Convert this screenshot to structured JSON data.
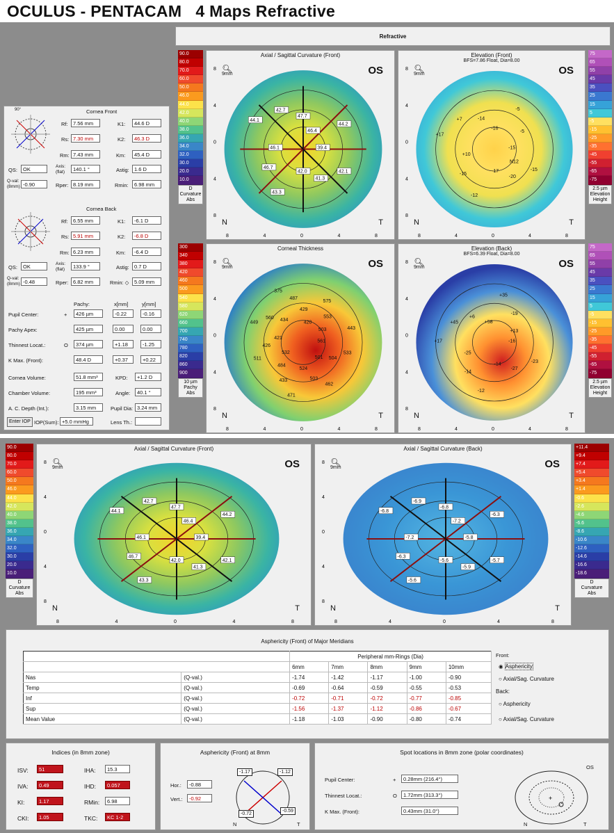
{
  "title": "OCULUS - PENTACAM   4 Maps Refractive",
  "refractive": "Refractive",
  "maps": {
    "axial": {
      "title": "Axial / Sagittal Curvature (Front)"
    },
    "elev_front": {
      "title": "Elevation (Front)",
      "sub": "BFS=7.86 Float, Dia=8.00"
    },
    "thickness": {
      "title": "Corneal Thickness"
    },
    "elev_back": {
      "title": "Elevation (Back)",
      "sub": "BFS=6.39 Float, Dia=8.00"
    },
    "axial_back": {
      "title": "Axial / Sagittal Curvature (Back)"
    },
    "os": "OS",
    "mag": "9mm",
    "n": "N",
    "t": "T",
    "xticks": [
      "8",
      "4",
      "0",
      "4",
      "8"
    ],
    "yticks": [
      "8",
      "4",
      "0",
      "4",
      "8"
    ]
  },
  "scales": {
    "curv": {
      "values": [
        "90.0",
        "80.0",
        "70.0",
        "60.0",
        "50.0",
        "46.0",
        "44.0",
        "42.0",
        "40.0",
        "38.0",
        "36.0",
        "34.0",
        "32.0",
        "30.0",
        "20.0",
        "10.0"
      ],
      "foot": [
        "D",
        "Curvature",
        "Abs"
      ]
    },
    "elev": {
      "values": [
        "75",
        "65",
        "55",
        "45",
        "35",
        "25",
        "15",
        "5",
        "-5",
        "-15",
        "-25",
        "-35",
        "-45",
        "-55",
        "-65",
        "-75"
      ],
      "foot": [
        "2.5 µm",
        "Elevation",
        "Height"
      ]
    },
    "pachy": {
      "values": [
        "300",
        "340",
        "380",
        "420",
        "460",
        "500",
        "540",
        "580",
        "620",
        "660",
        "700",
        "740",
        "780",
        "820",
        "860",
        "900"
      ],
      "foot": [
        "10 µm",
        "Pachy",
        "Abs"
      ]
    },
    "back": {
      "values": [
        "+11.4",
        "+9.4",
        "+7.4",
        "+5.4",
        "+3.4",
        "+1.4",
        "-0.6",
        "-2.6",
        "-4.6",
        "-6.6",
        "-8.6",
        "-10.6",
        "-12.6",
        "-14.6",
        "-16.6",
        "-18.6"
      ],
      "foot": [
        "D",
        "Curvature",
        "Abs"
      ]
    },
    "colors": [
      "#9b0000",
      "#c00000",
      "#e21a1a",
      "#f04a2c",
      "#f5781e",
      "#fb9a1e",
      "#fce24a",
      "#d6e65c",
      "#8ed676",
      "#52c28c",
      "#36a6b2",
      "#3a86c8",
      "#2e60c0",
      "#2a3ea6",
      "#3a2a8e",
      "#4a1e78"
    ],
    "elev_colors": [
      "#c468c8",
      "#b050b8",
      "#9040a8",
      "#6a3aa8",
      "#4a50c0",
      "#3a78d0",
      "#36a2d8",
      "#40c8d8",
      "#ffe060",
      "#ffc030",
      "#ff9a28",
      "#ff7030",
      "#f04030",
      "#d02030",
      "#b01040",
      "#900030"
    ]
  },
  "front": {
    "title": "Cornea Front",
    "rf_l": "Rf:",
    "rf": "7.56 mm",
    "k1_l": "K1:",
    "k1": "44.6 D",
    "rs_l": "Rs:",
    "rs": "7.30 mm",
    "k2_l": "K2:",
    "k2": "46.3 D",
    "rm_l": "Rm:",
    "rm": "7.43 mm",
    "km_l": "Km:",
    "km": "45.4 D",
    "qs_l": "QS:",
    "qs": "OK",
    "axis_l": "Axis: (flat)",
    "axis": "140.1 °",
    "astig_l": "Astig:",
    "astig": "1.6 D",
    "qval_l": "Q-val: (8mm)",
    "qval": "-0.90",
    "rper_l": "Rper:",
    "rper": "8.19 mm",
    "rmin_l": "Rmin:",
    "rmin": "6.98 mm"
  },
  "back": {
    "title": "Cornea Back",
    "rf_l": "Rf:",
    "rf": "6.55 mm",
    "k1_l": "K1:",
    "k1": "-6.1 D",
    "rs_l": "Rs:",
    "rs": "5.91 mm",
    "k2_l": "K2:",
    "k2": "-6.8 D",
    "rm_l": "Rm:",
    "rm": "6.23 mm",
    "km_l": "Km:",
    "km": "-6.4 D",
    "qs_l": "QS:",
    "qs": "OK",
    "axis_l": "Axis: (flat)",
    "axis": "133.9 °",
    "astig_l": "Astig:",
    "astig": "0.7 D",
    "qval_l": "Q-val: (8mm)",
    "qval": "-0.48",
    "rper_l": "Rper:",
    "rper": "6.82 mm",
    "rmin_l": "Rmin: ◇",
    "rmin": "5.09 mm"
  },
  "pachy": {
    "h_pachy": "Pachy:",
    "h_x": "x[mm]",
    "h_y": "y[mm]",
    "rows": [
      {
        "label": "Pupil Center:",
        "sym": "+",
        "v": "426 µm",
        "x": "-0.22",
        "y": "-0.16"
      },
      {
        "label": "Pachy Apex:",
        "sym": "",
        "v": "425 µm",
        "x": "0.00",
        "y": "0.00"
      },
      {
        "label": "Thinnest Locat.:",
        "sym": "O",
        "v": "374 µm",
        "x": "+1.18",
        "y": "-1.25"
      },
      {
        "label": "K Max. (Front):",
        "sym": "",
        "v": "48.4 D",
        "x": "+0.37",
        "y": "+0.22"
      }
    ]
  },
  "vol": {
    "cv_l": "Cornea Volume:",
    "cv": "51.8 mm³",
    "kpd_l": "KPD:",
    "kpd": "+1.2 D",
    "chv_l": "Chamber Volume:",
    "chv": "195 mm³",
    "ang_l": "Angle:",
    "ang": "40.1 °",
    "acd_l": "A. C. Depth (Int.):",
    "acd": "3.15 mm",
    "pd_l": "Pupil Dia:",
    "pd": "3.24 mm",
    "iop_btn": "Enter IOP",
    "iop_l": "IOP(Sum):",
    "iop": "+5.0 mmHg",
    "lens_l": "Lens Th.:",
    "lens": ""
  },
  "front_vals": [
    "39.4",
    "42.1",
    "41.3",
    "42.0",
    "43.3",
    "46.7",
    "46.1",
    "44.1",
    "42.7",
    "47.7",
    "46.4",
    "44.2"
  ],
  "elev_front_vals": [
    "-15",
    "-15",
    "-20",
    "-17",
    "-12",
    "-15",
    "+10",
    "+17",
    "+7",
    "-14",
    "-16",
    "-5",
    "-5"
  ],
  "elev_front_mark": "N12",
  "thick_vals": [
    "561",
    "533",
    "504",
    "501",
    "462",
    "503",
    "524",
    "471",
    "433",
    "484",
    "532",
    "511",
    "426",
    "421",
    "449",
    "560",
    "434",
    "375",
    "487",
    "429",
    "420",
    "575",
    "553",
    "503",
    "443"
  ],
  "elev_back_vals": [
    "-16",
    "-23",
    "-27",
    "-14",
    "-12",
    "-14",
    "-25",
    "+17",
    "+45",
    "+6",
    "+58",
    "+35",
    "-19",
    "+13"
  ],
  "back_vals": [
    "-5.8",
    "-5.7",
    "-5.9",
    "-5.6",
    "-5.6",
    "-6.3",
    "-7.2",
    "-6.8",
    "-6.9",
    "-6.8",
    "-7.2",
    "-6.3"
  ],
  "asph": {
    "title": "Asphericity (Front) of Major Meridians",
    "group": "Peripheral mm-Rings (Dia)",
    "cols": [
      "6mm",
      "7mm",
      "8mm",
      "9mm",
      "10mm"
    ],
    "rows": [
      {
        "name": "Nas",
        "q": "(Q-val.)",
        "v": [
          "-1.74",
          "-1.42",
          "-1.17",
          "-1.00",
          "-0.90"
        ]
      },
      {
        "name": "Temp",
        "q": "(Q-val.)",
        "v": [
          "-0.69",
          "-0.64",
          "-0.59",
          "-0.55",
          "-0.53"
        ]
      },
      {
        "name": "Inf",
        "q": "(Q-val.)",
        "v": [
          "-0.72",
          "-0.71",
          "-0.72",
          "-0.77",
          "-0.85"
        ]
      },
      {
        "name": "Sup",
        "q": "(Q-val.)",
        "v": [
          "-1.56",
          "-1.37",
          "-1.12",
          "-0.86",
          "-0.67"
        ]
      },
      {
        "name": "Mean Value",
        "q": "(Q-val.)",
        "v": [
          "-1.18",
          "-1.03",
          "-0.90",
          "-0.80",
          "-0.74"
        ]
      }
    ],
    "front_l": "Front:",
    "opt1": "Asphericity",
    "opt2": "Axial/Sag. Curvature",
    "back_l": "Back:",
    "opt3": "Asphericity",
    "opt4": "Axial/Sag. Curvature"
  },
  "indices": {
    "title": "Indices (in 8mm zone)",
    "isv_l": "ISV:",
    "isv": "51",
    "iha_l": "IHA:",
    "iha": "15.3",
    "iva_l": "IVA:",
    "iva": "0.49",
    "ihd_l": "IHD:",
    "ihd": "0.057",
    "ki_l": "KI:",
    "ki": "1.17",
    "rmin_l": "RMin:",
    "rmin": "6.98",
    "cki_l": "CKI:",
    "cki": "1.05",
    "tkc_l": "TKC:",
    "tkc": "KC 1-2"
  },
  "asph8": {
    "title": "Asphericity (Front) at 8mm",
    "hor_l": "Hor.:",
    "hor": "-0.88",
    "vert_l": "Vert.:",
    "vert": "-0.92",
    "q1": "-1.17",
    "q2": "-1.12",
    "q3": "-0.72",
    "q4": "-0.59",
    "n": "N",
    "t": "T"
  },
  "spot": {
    "title": "Spot locations in 8mm zone (polar coordinates)",
    "pc_l": "Pupil Center:",
    "pc_sym": "+",
    "pc": "0.28mm (216.4°)",
    "tl_l": "Thinnest Locat.:",
    "tl_sym": "O",
    "tl": "1.72mm (313.3°)",
    "km_l": "K Max. (Front):",
    "km": "0.43mm (31.0°)",
    "os": "OS",
    "n": "N",
    "t": "T"
  }
}
